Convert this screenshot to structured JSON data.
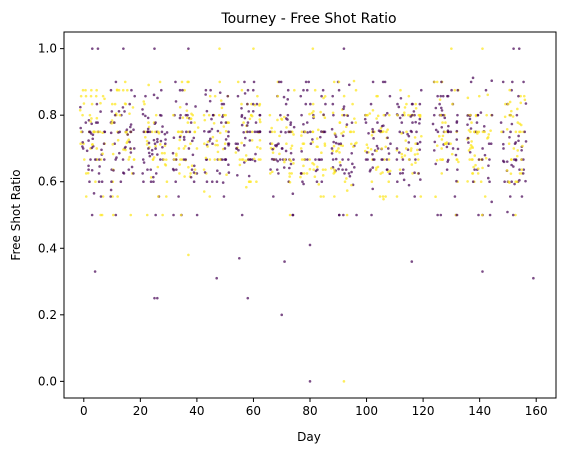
{
  "chart_data": {
    "type": "scatter",
    "title": "Tourney - Free Shot Ratio",
    "xlabel": "Day",
    "ylabel": "Free Shot Ratio",
    "xlim": [
      -7,
      167
    ],
    "ylim": [
      -0.05,
      1.05
    ],
    "xticks": [
      0,
      20,
      40,
      60,
      80,
      100,
      120,
      140,
      160
    ],
    "xtick_labels": [
      "0",
      "20",
      "40",
      "60",
      "80",
      "100",
      "120",
      "140",
      "160"
    ],
    "yticks": [
      0.0,
      0.2,
      0.4,
      0.6,
      0.8,
      1.0
    ],
    "ytick_labels": [
      "0.0",
      "0.2",
      "0.4",
      "0.6",
      "0.8",
      "1.0"
    ],
    "grid": false,
    "legend": "none",
    "marker_size": 1.3,
    "colors": {
      "purple": "#440154",
      "yellow": "#fde725"
    },
    "clusters_x": [
      3,
      14,
      25,
      36,
      47,
      58,
      70,
      81,
      92,
      104,
      115,
      128,
      140,
      152
    ],
    "cluster_spread": 4.5,
    "points_per_cluster": 90,
    "outliers": [
      {
        "x": 25,
        "y": 0.25,
        "color": "purple"
      },
      {
        "x": 26,
        "y": 0.25,
        "color": "purple"
      },
      {
        "x": 58,
        "y": 0.25,
        "color": "purple"
      },
      {
        "x": 70,
        "y": 0.2,
        "color": "purple"
      },
      {
        "x": 80,
        "y": 0.0,
        "color": "purple"
      },
      {
        "x": 92,
        "y": 0.0,
        "color": "yellow"
      },
      {
        "x": 4,
        "y": 0.33,
        "color": "purple"
      },
      {
        "x": 141,
        "y": 0.33,
        "color": "purple"
      },
      {
        "x": 159,
        "y": 0.31,
        "color": "purple"
      },
      {
        "x": 47,
        "y": 0.31,
        "color": "purple"
      },
      {
        "x": 71,
        "y": 0.36,
        "color": "purple"
      },
      {
        "x": 116,
        "y": 0.36,
        "color": "purple"
      },
      {
        "x": 55,
        "y": 0.37,
        "color": "purple"
      },
      {
        "x": 37,
        "y": 0.38,
        "color": "yellow"
      },
      {
        "x": 80,
        "y": 0.41,
        "color": "purple"
      },
      {
        "x": 3,
        "y": 1.0,
        "color": "purple"
      },
      {
        "x": 5,
        "y": 1.0,
        "color": "purple"
      },
      {
        "x": 14,
        "y": 1.0,
        "color": "purple"
      },
      {
        "x": 25,
        "y": 1.0,
        "color": "purple"
      },
      {
        "x": 37,
        "y": 1.0,
        "color": "purple"
      },
      {
        "x": 48,
        "y": 1.0,
        "color": "yellow"
      },
      {
        "x": 60,
        "y": 1.0,
        "color": "yellow"
      },
      {
        "x": 81,
        "y": 1.0,
        "color": "yellow"
      },
      {
        "x": 92,
        "y": 1.0,
        "color": "purple"
      },
      {
        "x": 130,
        "y": 1.0,
        "color": "yellow"
      },
      {
        "x": 141,
        "y": 1.0,
        "color": "yellow"
      },
      {
        "x": 152,
        "y": 1.0,
        "color": "purple"
      },
      {
        "x": 154,
        "y": 1.0,
        "color": "purple"
      }
    ]
  }
}
